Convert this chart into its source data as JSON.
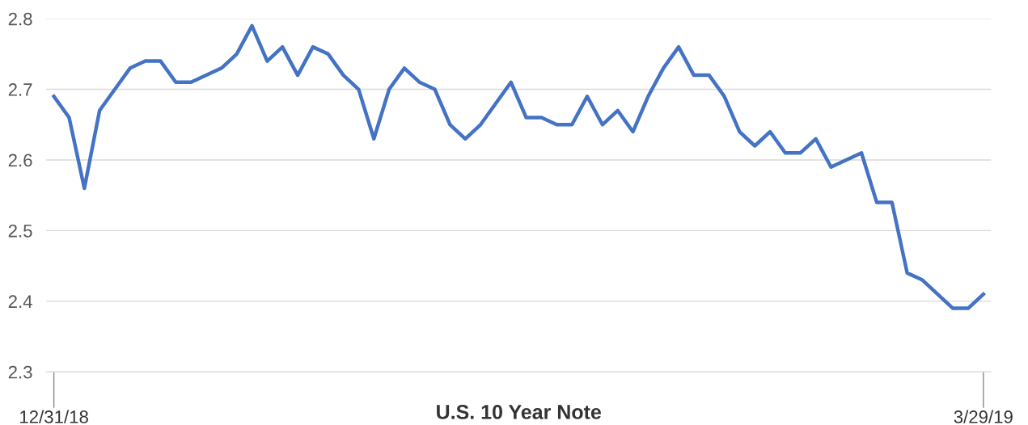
{
  "chart_data": {
    "type": "line",
    "xlabel": "U.S. 10 Year Note",
    "categories": [
      "12/31/18",
      null,
      null,
      null,
      null,
      null,
      null,
      null,
      null,
      null,
      null,
      null,
      null,
      null,
      null,
      null,
      null,
      null,
      null,
      null,
      null,
      null,
      null,
      null,
      null,
      null,
      null,
      null,
      null,
      null,
      null,
      null,
      null,
      null,
      null,
      null,
      null,
      null,
      null,
      null,
      null,
      null,
      null,
      null,
      null,
      null,
      null,
      null,
      null,
      null,
      null,
      null,
      null,
      null,
      null,
      null,
      null,
      null,
      null,
      null,
      null,
      "3/29/19"
    ],
    "series": [
      {
        "color": "#4472c4",
        "values": [
          2.69,
          2.66,
          2.56,
          2.67,
          2.7,
          2.73,
          2.74,
          2.74,
          2.71,
          2.71,
          2.72,
          2.73,
          2.75,
          2.79,
          2.74,
          2.76,
          2.72,
          2.76,
          2.75,
          2.72,
          2.7,
          2.63,
          2.7,
          2.73,
          2.71,
          2.7,
          2.65,
          2.63,
          2.65,
          2.68,
          2.71,
          2.66,
          2.66,
          2.65,
          2.65,
          2.69,
          2.65,
          2.67,
          2.64,
          2.69,
          2.73,
          2.76,
          2.72,
          2.72,
          2.69,
          2.64,
          2.62,
          2.64,
          2.61,
          2.61,
          2.63,
          2.59,
          2.6,
          2.61,
          2.54,
          2.54,
          2.44,
          2.43,
          2.41,
          2.39,
          2.39,
          2.41
        ]
      }
    ],
    "ylim": [
      2.3,
      2.8
    ],
    "yticks": [
      2.3,
      2.4,
      2.5,
      2.6,
      2.7,
      2.8
    ],
    "grid": "y",
    "line_style": "solid"
  }
}
